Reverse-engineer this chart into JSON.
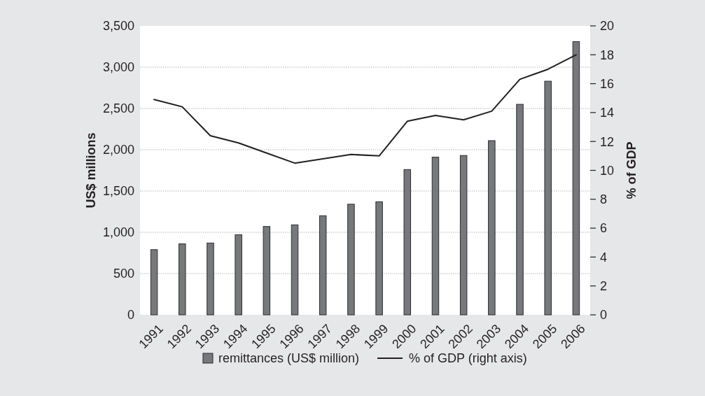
{
  "chart_data": {
    "type": "bar",
    "categories": [
      "1991",
      "1992",
      "1993",
      "1994",
      "1995",
      "1996",
      "1997",
      "1998",
      "1999",
      "2000",
      "2001",
      "2002",
      "2003",
      "2004",
      "2005",
      "2006"
    ],
    "series": [
      {
        "name": "remittances (US$ million)",
        "color": "#77787c",
        "values": [
          790,
          860,
          870,
          970,
          1070,
          1090,
          1200,
          1340,
          1370,
          1760,
          1910,
          1930,
          2110,
          2550,
          2830,
          3310
        ]
      },
      {
        "name": "% of GDP (right axis)",
        "type": "line",
        "axis": "y2",
        "color": "#231f20",
        "values": [
          14.9,
          14.4,
          12.4,
          11.9,
          11.2,
          10.5,
          10.8,
          11.1,
          11.0,
          13.4,
          13.8,
          13.5,
          14.1,
          16.3,
          17.0,
          18.0
        ]
      }
    ],
    "ylabel": "US$ millions",
    "y2label": "% of GDP",
    "ylim": [
      0,
      3500
    ],
    "yticks": [
      0,
      500,
      {
        "value": 1000,
        "label": "1,000"
      },
      {
        "value": 1500,
        "label": "1,500"
      },
      {
        "value": 2000,
        "label": "2,000"
      },
      {
        "value": 2500,
        "label": "2,500"
      },
      {
        "value": 3000,
        "label": "3,000"
      },
      {
        "value": 3500,
        "label": "3,500"
      }
    ],
    "y2lim": [
      0,
      20
    ],
    "y2ticks": [
      0,
      2,
      4,
      6,
      8,
      10,
      12,
      14,
      16,
      18,
      20
    ],
    "grid": "y",
    "legend": "bottom"
  }
}
